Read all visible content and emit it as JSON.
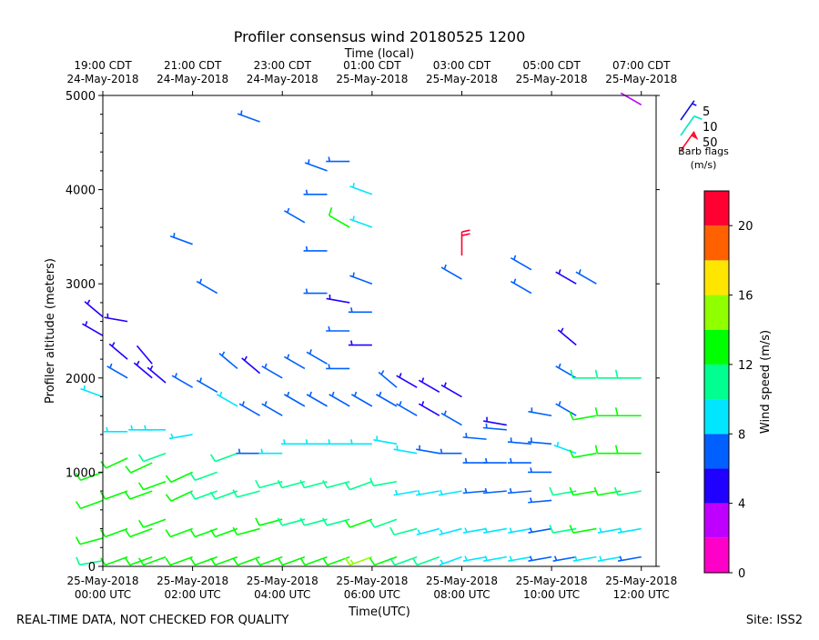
{
  "chart_data": {
    "type": "scatter",
    "title": "Profiler consensus wind 20180525 1200",
    "top_xlabel": "Time (local)",
    "xlabel": "Time(UTC)",
    "ylabel": "Profiler altitude (meters)",
    "xlim": [
      0,
      12.33
    ],
    "ylim": [
      0,
      5000
    ],
    "yticks": [
      0,
      1000,
      2000,
      3000,
      4000,
      5000
    ],
    "bottom_ticks": [
      {
        "x": 0,
        "line1": "25-May-2018",
        "line2": "00:00 UTC"
      },
      {
        "x": 2,
        "line1": "25-May-2018",
        "line2": "02:00 UTC"
      },
      {
        "x": 4,
        "line1": "25-May-2018",
        "line2": "04:00 UTC"
      },
      {
        "x": 6,
        "line1": "25-May-2018",
        "line2": "06:00 UTC"
      },
      {
        "x": 8,
        "line1": "25-May-2018",
        "line2": "08:00 UTC"
      },
      {
        "x": 10,
        "line1": "25-May-2018",
        "line2": "10:00 UTC"
      },
      {
        "x": 12,
        "line1": "25-May-2018",
        "line2": "12:00 UTC"
      }
    ],
    "top_ticks": [
      {
        "x": 0,
        "line1": "19:00 CDT",
        "line2": "24-May-2018"
      },
      {
        "x": 2,
        "line1": "21:00 CDT",
        "line2": "24-May-2018"
      },
      {
        "x": 4,
        "line1": "23:00 CDT",
        "line2": "24-May-2018"
      },
      {
        "x": 6,
        "line1": "01:00 CDT",
        "line2": "25-May-2018"
      },
      {
        "x": 8,
        "line1": "03:00 CDT",
        "line2": "25-May-2018"
      },
      {
        "x": 10,
        "line1": "05:00 CDT",
        "line2": "25-May-2018"
      },
      {
        "x": 12,
        "line1": "07:00 CDT",
        "line2": "25-May-2018"
      }
    ],
    "barb_legend": {
      "title_line1": "Barb flags",
      "title_line2": "(m/s)",
      "entries": [
        {
          "label": "5",
          "color": "#1010e0"
        },
        {
          "label": "10",
          "color": "#00e6c8"
        },
        {
          "label": "50",
          "color": "#ff1030"
        }
      ]
    },
    "colorbar": {
      "label": "Wind speed (m/s)",
      "tick_values": [
        0,
        4,
        8,
        12,
        16,
        20
      ],
      "tick_labels": [
        "0",
        "4",
        "8",
        "12",
        "16",
        "20"
      ],
      "range": [
        0,
        22
      ],
      "bins": [
        {
          "from": 0,
          "to": 2,
          "color": "#ff00c8"
        },
        {
          "from": 2,
          "to": 4,
          "color": "#c000ff"
        },
        {
          "from": 4,
          "to": 6,
          "color": "#2000ff"
        },
        {
          "from": 6,
          "to": 8,
          "color": "#0060ff"
        },
        {
          "from": 8,
          "to": 10,
          "color": "#00e6ff"
        },
        {
          "from": 10,
          "to": 12,
          "color": "#00ff90"
        },
        {
          "from": 12,
          "to": 14,
          "color": "#00ff00"
        },
        {
          "from": 14,
          "to": 16,
          "color": "#90ff00"
        },
        {
          "from": 16,
          "to": 18,
          "color": "#ffe600"
        },
        {
          "from": 18,
          "to": 20,
          "color": "#ff6000"
        },
        {
          "from": 20,
          "to": 22,
          "color": "#ff0030"
        }
      ]
    },
    "series": [
      {
        "name": "00:00 UTC",
        "time": 0.0,
        "profile": [
          [
            60,
            10,
            260
          ],
          [
            300,
            12,
            255
          ],
          [
            700,
            13,
            250
          ],
          [
            1000,
            13,
            250
          ],
          [
            1800,
            9,
            290
          ],
          [
            2450,
            5,
            300
          ],
          [
            2650,
            5,
            310
          ]
        ]
      },
      {
        "name": "00:33 UTC",
        "time": 0.55,
        "profile": [
          [
            100,
            12,
            250
          ],
          [
            400,
            12,
            250
          ],
          [
            800,
            12,
            250
          ],
          [
            1150,
            12,
            245
          ],
          [
            1430,
            9,
            270
          ],
          [
            2000,
            6,
            300
          ],
          [
            2200,
            5,
            310
          ],
          [
            2600,
            5,
            280
          ]
        ]
      },
      {
        "name": "01:06 UTC",
        "time": 1.1,
        "profile": [
          [
            100,
            13,
            250
          ],
          [
            400,
            12,
            250
          ],
          [
            800,
            12,
            250
          ],
          [
            1100,
            12,
            245
          ],
          [
            1450,
            9,
            270
          ],
          [
            2000,
            5,
            310
          ],
          [
            2150,
            4,
            320
          ]
        ]
      },
      {
        "name": "01:24 UTC",
        "time": 1.4,
        "profile": [
          [
            100,
            13,
            250
          ],
          [
            500,
            12,
            250
          ],
          [
            900,
            12,
            250
          ],
          [
            1200,
            11,
            250
          ],
          [
            1450,
            9,
            270
          ],
          [
            1950,
            5,
            310
          ]
        ]
      },
      {
        "name": "02:00 UTC",
        "time": 2.0,
        "profile": [
          [
            100,
            13,
            250
          ],
          [
            400,
            12,
            250
          ],
          [
            800,
            12,
            245
          ],
          [
            1000,
            12,
            245
          ],
          [
            1400,
            9,
            260
          ],
          [
            1900,
            6,
            300
          ],
          [
            3420,
            6,
            290
          ]
        ]
      },
      {
        "name": "02:33 UTC",
        "time": 2.55,
        "profile": [
          [
            100,
            12,
            250
          ],
          [
            400,
            12,
            250
          ],
          [
            800,
            11,
            250
          ],
          [
            1000,
            10,
            250
          ],
          [
            1850,
            6,
            300
          ],
          [
            2900,
            6,
            300
          ]
        ]
      },
      {
        "name": "03:00 UTC",
        "time": 3.0,
        "profile": [
          [
            100,
            12,
            250
          ],
          [
            400,
            12,
            250
          ],
          [
            800,
            11,
            250
          ],
          [
            1200,
            10,
            250
          ],
          [
            1700,
            8,
            300
          ],
          [
            2100,
            6,
            310
          ]
        ]
      },
      {
        "name": "03:30 UTC",
        "time": 3.5,
        "profile": [
          [
            100,
            13,
            250
          ],
          [
            400,
            12,
            255
          ],
          [
            800,
            11,
            255
          ],
          [
            1200,
            7,
            270
          ],
          [
            1600,
            7,
            300
          ],
          [
            2050,
            5,
            310
          ],
          [
            4720,
            6,
            290
          ]
        ]
      },
      {
        "name": "04:00 UTC",
        "time": 4.0,
        "profile": [
          [
            100,
            12,
            250
          ],
          [
            500,
            12,
            255
          ],
          [
            900,
            10,
            255
          ],
          [
            1200,
            8,
            270
          ],
          [
            1600,
            7,
            300
          ],
          [
            2000,
            6,
            300
          ]
        ]
      },
      {
        "name": "04:30 UTC",
        "time": 4.5,
        "profile": [
          [
            100,
            12,
            250
          ],
          [
            500,
            11,
            255
          ],
          [
            900,
            10,
            255
          ],
          [
            1300,
            8,
            270
          ],
          [
            1700,
            7,
            300
          ],
          [
            2100,
            6,
            300
          ],
          [
            3650,
            6,
            300
          ]
        ]
      },
      {
        "name": "05:00 UTC",
        "time": 5.0,
        "profile": [
          [
            100,
            12,
            250
          ],
          [
            500,
            11,
            255
          ],
          [
            900,
            10,
            255
          ],
          [
            1300,
            8,
            270
          ],
          [
            1700,
            6,
            300
          ],
          [
            2150,
            6,
            300
          ],
          [
            2900,
            6,
            270
          ],
          [
            3350,
            6,
            270
          ],
          [
            3950,
            6,
            270
          ],
          [
            4200,
            6,
            290
          ]
        ]
      },
      {
        "name": "05:30 UTC",
        "time": 5.5,
        "profile": [
          [
            100,
            13,
            250
          ],
          [
            500,
            11,
            255
          ],
          [
            900,
            10,
            255
          ],
          [
            1300,
            8,
            270
          ],
          [
            1700,
            6,
            300
          ],
          [
            2100,
            6,
            270
          ],
          [
            2500,
            6,
            270
          ],
          [
            2800,
            5,
            280
          ],
          [
            3600,
            12,
            300
          ],
          [
            4300,
            6,
            270
          ]
        ]
      },
      {
        "name": "06:00 UTC",
        "time": 6.0,
        "profile": [
          [
            100,
            15,
            250
          ],
          [
            500,
            13,
            250
          ],
          [
            900,
            11,
            250
          ],
          [
            1300,
            9,
            270
          ],
          [
            1700,
            6,
            300
          ],
          [
            2350,
            5,
            270
          ],
          [
            2700,
            6,
            270
          ],
          [
            3000,
            6,
            290
          ],
          [
            3600,
            9,
            290
          ],
          [
            3950,
            8,
            290
          ]
        ]
      },
      {
        "name": "06:33 UTC",
        "time": 6.55,
        "profile": [
          [
            100,
            12,
            250
          ],
          [
            500,
            11,
            250
          ],
          [
            900,
            10,
            260
          ],
          [
            1300,
            8,
            280
          ],
          [
            1700,
            7,
            300
          ],
          [
            1900,
            6,
            310
          ]
        ]
      },
      {
        "name": "07:00 UTC",
        "time": 7.0,
        "profile": [
          [
            100,
            11,
            250
          ],
          [
            400,
            10,
            255
          ],
          [
            800,
            9,
            260
          ],
          [
            1200,
            8,
            280
          ],
          [
            1600,
            6,
            300
          ],
          [
            1900,
            5,
            300
          ]
        ]
      },
      {
        "name": "07:30 UTC",
        "time": 7.5,
        "profile": [
          [
            100,
            10,
            250
          ],
          [
            400,
            9,
            255
          ],
          [
            800,
            9,
            260
          ],
          [
            1200,
            6,
            280
          ],
          [
            1600,
            5,
            300
          ],
          [
            1850,
            5,
            300
          ]
        ]
      },
      {
        "name": "08:00 UTC",
        "time": 8.0,
        "profile": [
          [
            100,
            9,
            250
          ],
          [
            400,
            9,
            255
          ],
          [
            800,
            8,
            260
          ],
          [
            1200,
            6,
            270
          ],
          [
            1500,
            6,
            300
          ],
          [
            1800,
            5,
            300
          ],
          [
            3050,
            7,
            300
          ],
          [
            3300,
            21,
            0
          ]
        ]
      },
      {
        "name": "08:33 UTC",
        "time": 8.55,
        "profile": [
          [
            100,
            9,
            260
          ],
          [
            400,
            8,
            260
          ],
          [
            800,
            7,
            265
          ],
          [
            1100,
            6,
            270
          ],
          [
            1350,
            6,
            275
          ]
        ]
      },
      {
        "name": "09:00 UTC",
        "time": 9.0,
        "profile": [
          [
            100,
            9,
            260
          ],
          [
            400,
            8,
            260
          ],
          [
            800,
            7,
            265
          ],
          [
            1100,
            6,
            270
          ],
          [
            1450,
            6,
            275
          ],
          [
            1500,
            5,
            280
          ]
        ]
      },
      {
        "name": "09:33 UTC",
        "time": 9.55,
        "profile": [
          [
            100,
            8,
            260
          ],
          [
            400,
            8,
            260
          ],
          [
            800,
            6,
            265
          ],
          [
            1100,
            6,
            270
          ],
          [
            1300,
            6,
            275
          ],
          [
            2900,
            6,
            300
          ],
          [
            3150,
            6,
            300
          ]
        ]
      },
      {
        "name": "10:00 UTC",
        "time": 10.0,
        "profile": [
          [
            100,
            7,
            260
          ],
          [
            400,
            7,
            260
          ],
          [
            700,
            6,
            265
          ],
          [
            1000,
            6,
            270
          ],
          [
            1300,
            6,
            275
          ],
          [
            1600,
            6,
            280
          ]
        ]
      },
      {
        "name": "10:33 UTC",
        "time": 10.55,
        "profile": [
          [
            100,
            7,
            260
          ],
          [
            400,
            10,
            260
          ],
          [
            800,
            10,
            260
          ],
          [
            1200,
            8,
            290
          ],
          [
            1600,
            7,
            300
          ],
          [
            2000,
            6,
            300
          ],
          [
            2350,
            5,
            310
          ],
          [
            3000,
            5,
            300
          ]
        ]
      },
      {
        "name": "11:00 UTC",
        "time": 11.0,
        "profile": [
          [
            100,
            8,
            260
          ],
          [
            400,
            13,
            260
          ],
          [
            800,
            13,
            260
          ],
          [
            1200,
            13,
            260
          ],
          [
            1600,
            12,
            260
          ],
          [
            2000,
            10,
            270
          ],
          [
            3000,
            6,
            300
          ]
        ]
      },
      {
        "name": "11:33 UTC",
        "time": 11.55,
        "profile": [
          [
            100,
            8,
            260
          ],
          [
            400,
            9,
            260
          ],
          [
            800,
            12,
            260
          ],
          [
            1200,
            13,
            270
          ],
          [
            1600,
            13,
            270
          ],
          [
            2000,
            11,
            270
          ]
        ]
      },
      {
        "name": "12:00 UTC",
        "time": 12.0,
        "profile": [
          [
            100,
            7,
            260
          ],
          [
            400,
            8,
            260
          ],
          [
            800,
            11,
            260
          ],
          [
            1200,
            13,
            270
          ],
          [
            1600,
            13,
            270
          ],
          [
            2000,
            11,
            270
          ],
          [
            4900,
            2,
            300
          ]
        ]
      }
    ]
  },
  "footer": {
    "left_text": "REAL-TIME DATA, NOT CHECKED FOR QUALITY",
    "right_text": "Site: ISS2"
  }
}
